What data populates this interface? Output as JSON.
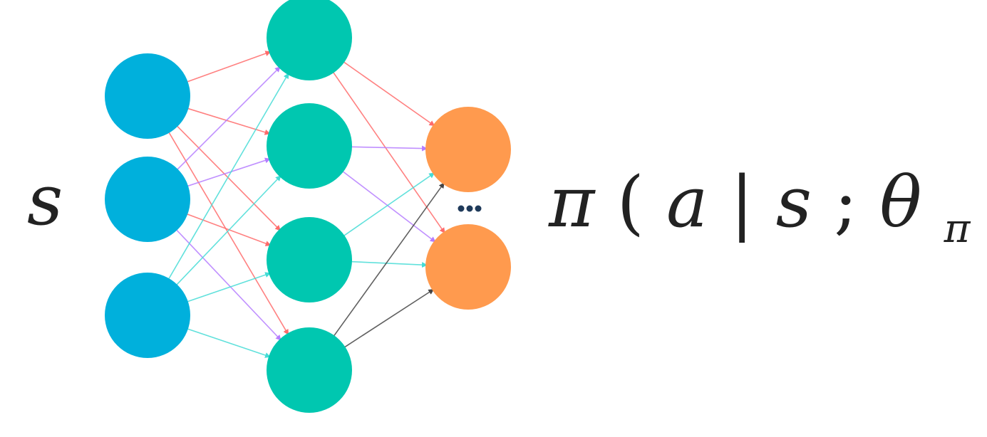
{
  "input_label": "s",
  "output_label": {
    "pi": "π",
    "open_paren": "(",
    "action": "a",
    "bar": "|",
    "state": "s",
    "semicolon": ";",
    "theta": "θ",
    "theta_subscript": "π",
    "close_paren": ")"
  },
  "ellipsis": "•••",
  "network": {
    "layers": [
      {
        "name": "input",
        "units": 3,
        "color": "#00b0dc"
      },
      {
        "name": "hidden",
        "units": 4,
        "color": "#00c7b0"
      },
      {
        "name": "output",
        "units": 2,
        "color": "#ff9a4e"
      }
    ]
  },
  "colors": {
    "edge_red": "#ff6b6b",
    "edge_purple": "#b57cff",
    "edge_cyan": "#45dcd6",
    "edge_dark": "#444444",
    "text": "#222222"
  }
}
